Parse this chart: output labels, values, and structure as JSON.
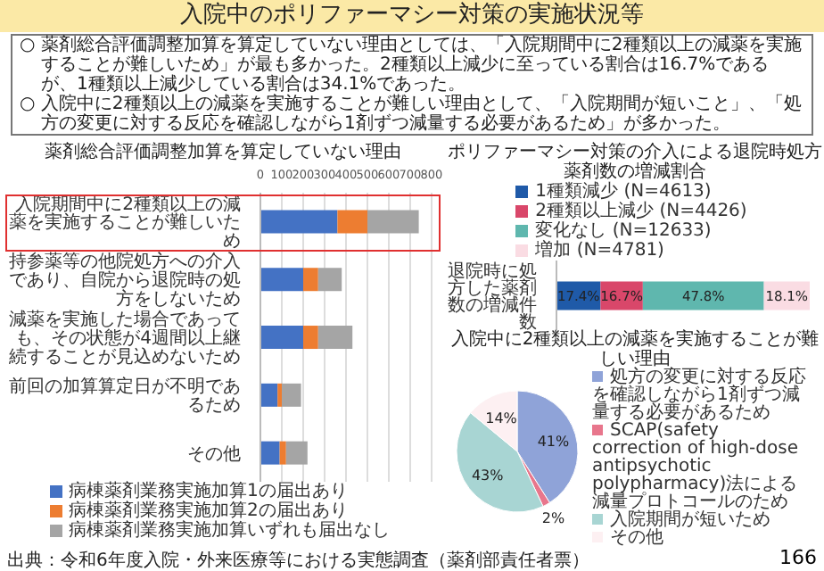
{
  "chart_data": [
    {
      "type": "other",
      "title": "入院中のポリファーマシー対策の実施状況等",
      "annotations": [
        "○ 薬剤総合評価調整加算を算定していない理由としては、「入院期間中に2種類以上の減薬を実施することが難しいため」が最も多かった。2種類以上減少に至っている割合は16.7%であるが、1種類以上減少している割合は34.1%であった。",
        "○ 入院中に2種類以上の減薬を実施することが難しい理由として、「入院期間が短いこと」、「処方の変更に対する反応を確認しながら1剤ずつ減量する必要があるため」が多かった。",
        "166"
      ]
    },
    {
      "type": "bar",
      "orientation": "horizontal",
      "stacked": true,
      "title": "薬剤総合評価調整加算を算定していない理由",
      "categories": [
        "入院期間中に2種類以上の減薬を実施することが難しいため",
        "持参薬等の他院処方への介入であり、自院から退院時の処方をしないため",
        "減薬を実施した場合であっても、その状態が4週間以上継続することが見込めないため",
        "前回の加算算定日が不明であるため",
        "その他"
      ],
      "series": [
        {
          "name": "病棟薬剤業務実施加算1の届出あり",
          "color": "#4472c4",
          "values": [
            360,
            200,
            200,
            80,
            90
          ]
        },
        {
          "name": "病棟薬剤業務実施加算2の届出あり",
          "color": "#ed7d31",
          "values": [
            140,
            70,
            70,
            20,
            30
          ]
        },
        {
          "name": "病棟薬剤業務実施加算いずれも届出なし",
          "color": "#a5a5a5",
          "values": [
            240,
            110,
            160,
            90,
            100
          ]
        }
      ],
      "xlim": [
        0,
        800
      ],
      "xticks": [
        0,
        100,
        200,
        300,
        400,
        500,
        600,
        700,
        800
      ],
      "grid": "x",
      "legend": "bottom",
      "annotations": [
        "出典：令和6年度入院・外来医療等における実態調査（薬剤部責任者票）"
      ]
    },
    {
      "type": "bar",
      "orientation": "horizontal",
      "stacked": true,
      "title": "ポリファーマシー対策の介入による退院時処方薬剤数の増減割合",
      "categories": [
        "退院時に処方した薬剤数の増減件数"
      ],
      "series": [
        {
          "name": "1種類減少 (N=4613)",
          "color": "#1f5aa8",
          "values": [
            17.4
          ],
          "value_labels": [
            "17.4%"
          ]
        },
        {
          "name": "2種類以上減少 (N=4426)",
          "color": "#d9476a",
          "values": [
            16.7
          ],
          "value_labels": [
            "16.7%"
          ]
        },
        {
          "name": "変化なし (N=12633)",
          "color": "#5fb7ae",
          "values": [
            47.8
          ],
          "value_labels": [
            "47.8%"
          ]
        },
        {
          "name": "増加 (N=4781)",
          "color": "#fadce3",
          "values": [
            18.1
          ],
          "value_labels": [
            "18.1%"
          ]
        }
      ],
      "legend": "top"
    },
    {
      "type": "pie",
      "title": "入院中に2種類以上の減薬を実施することが難しい理由",
      "categories": [
        "処方の変更に対する反応を確認しながら1剤ずつ減量する必要があるため",
        "SCAP(safety correction of high-dose antipsychotic polypharmacy)法による減量プロトコールのため",
        "入院期間が短いため",
        "その他"
      ],
      "values": [
        41,
        2,
        43,
        14
      ],
      "colors": [
        "#8fa3d8",
        "#e8768c",
        "#a8d5d3",
        "#fdf0f2"
      ],
      "value_labels": [
        "41%",
        "2%",
        "43%",
        "14%"
      ],
      "legend": "right"
    }
  ]
}
